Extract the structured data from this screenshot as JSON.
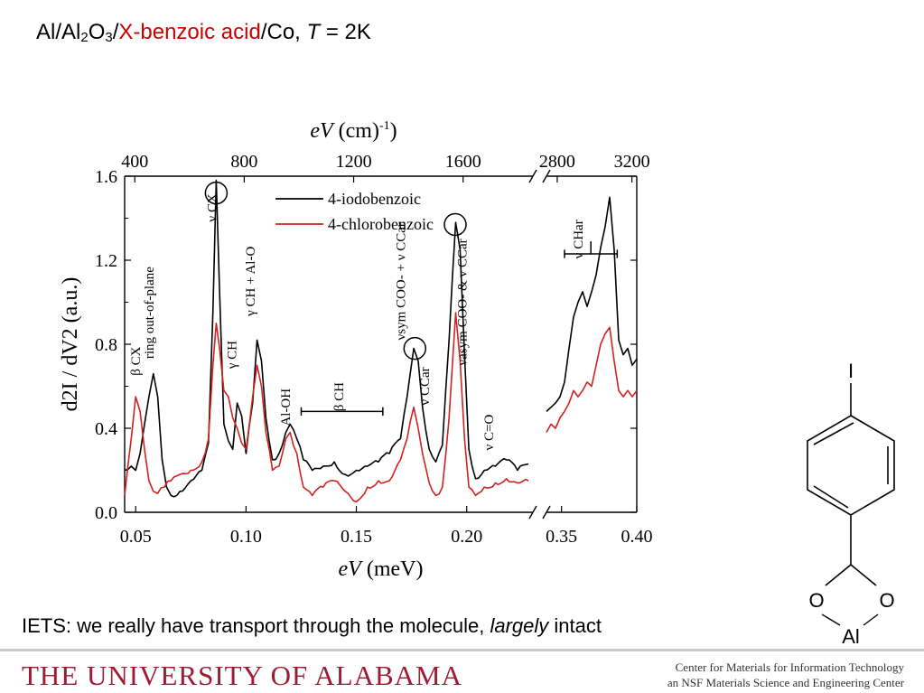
{
  "slide": {
    "title_parts": [
      "Al/Al",
      "2",
      "O",
      "3",
      "/",
      "X-benzoic acid",
      "/Co,  ",
      "T",
      " = 2K"
    ],
    "caption_parts": [
      "IETS: we really have transport through the molecule, ",
      "largely",
      " intact"
    ],
    "footer_left": "THE UNIVERSITY OF ALABAMA",
    "footer_right_line1": "Center for Materials for Information Technology",
    "footer_right_line2": "an NSF Materials Science and Engineering Center",
    "brand_color": "#9e1b32",
    "accent_red": "#cc0000"
  },
  "chart_data": {
    "type": "line",
    "xlabel": "eV (meV)",
    "top_xlabel": "eV (cm-1)",
    "ylabel": "d2I / dV2 (a.u.)",
    "ylim": [
      0.0,
      1.6
    ],
    "yticks": [
      "0.0",
      "0.4",
      "0.8",
      "1.2",
      "1.6"
    ],
    "axis_break": "between 0.23 and 0.34 meV (upper: between 1700 and 2700 cm-1)",
    "x_segments": [
      {
        "xlim": [
          0.045,
          0.23
        ],
        "ticks": [
          "0.05",
          "0.10",
          "0.15",
          "0.20"
        ],
        "top_ticks": [
          "400",
          "800",
          "1200",
          "1600"
        ]
      },
      {
        "xlim": [
          0.34,
          0.4
        ],
        "ticks": [
          "0.35",
          "0.40"
        ],
        "top_ticks": [
          "2800",
          "3200"
        ]
      }
    ],
    "series": [
      {
        "name": "4-iodobenzoic",
        "color": "#000000",
        "segment1": [
          [
            0.045,
            0.2
          ],
          [
            0.048,
            0.22
          ],
          [
            0.05,
            0.2
          ],
          [
            0.052,
            0.28
          ],
          [
            0.054,
            0.42
          ],
          [
            0.056,
            0.55
          ],
          [
            0.058,
            0.66
          ],
          [
            0.06,
            0.55
          ],
          [
            0.062,
            0.25
          ],
          [
            0.064,
            0.12
          ],
          [
            0.066,
            0.08
          ],
          [
            0.07,
            0.1
          ],
          [
            0.075,
            0.15
          ],
          [
            0.08,
            0.2
          ],
          [
            0.083,
            0.33
          ],
          [
            0.085,
            0.95
          ],
          [
            0.0865,
            1.58
          ],
          [
            0.088,
            1.05
          ],
          [
            0.09,
            0.42
          ],
          [
            0.092,
            0.34
          ],
          [
            0.094,
            0.3
          ],
          [
            0.096,
            0.52
          ],
          [
            0.098,
            0.46
          ],
          [
            0.1,
            0.28
          ],
          [
            0.103,
            0.52
          ],
          [
            0.105,
            0.82
          ],
          [
            0.107,
            0.72
          ],
          [
            0.109,
            0.45
          ],
          [
            0.112,
            0.25
          ],
          [
            0.115,
            0.28
          ],
          [
            0.118,
            0.38
          ],
          [
            0.12,
            0.42
          ],
          [
            0.123,
            0.35
          ],
          [
            0.126,
            0.25
          ],
          [
            0.13,
            0.2
          ],
          [
            0.135,
            0.22
          ],
          [
            0.14,
            0.24
          ],
          [
            0.145,
            0.18
          ],
          [
            0.15,
            0.2
          ],
          [
            0.155,
            0.22
          ],
          [
            0.16,
            0.24
          ],
          [
            0.165,
            0.28
          ],
          [
            0.17,
            0.35
          ],
          [
            0.173,
            0.55
          ],
          [
            0.176,
            0.78
          ],
          [
            0.178,
            0.72
          ],
          [
            0.18,
            0.5
          ],
          [
            0.183,
            0.3
          ],
          [
            0.186,
            0.24
          ],
          [
            0.189,
            0.32
          ],
          [
            0.192,
            0.82
          ],
          [
            0.195,
            1.38
          ],
          [
            0.197,
            1.25
          ],
          [
            0.199,
            0.75
          ],
          [
            0.201,
            0.3
          ],
          [
            0.204,
            0.16
          ],
          [
            0.208,
            0.2
          ],
          [
            0.213,
            0.22
          ],
          [
            0.218,
            0.25
          ],
          [
            0.223,
            0.2
          ],
          [
            0.228,
            0.23
          ]
        ],
        "segment2": [
          [
            0.34,
            0.48
          ],
          [
            0.343,
            0.5
          ],
          [
            0.346,
            0.52
          ],
          [
            0.349,
            0.55
          ],
          [
            0.352,
            0.62
          ],
          [
            0.355,
            0.78
          ],
          [
            0.358,
            0.93
          ],
          [
            0.361,
            1.0
          ],
          [
            0.364,
            1.05
          ],
          [
            0.367,
            0.98
          ],
          [
            0.37,
            1.05
          ],
          [
            0.373,
            1.13
          ],
          [
            0.376,
            1.26
          ],
          [
            0.379,
            1.36
          ],
          [
            0.382,
            1.5
          ],
          [
            0.385,
            1.25
          ],
          [
            0.388,
            0.82
          ],
          [
            0.391,
            0.75
          ],
          [
            0.394,
            0.78
          ],
          [
            0.397,
            0.7
          ],
          [
            0.4,
            0.73
          ]
        ]
      },
      {
        "name": "4-chlorobenzoic",
        "color": "#d42020",
        "segment1": [
          [
            0.045,
            0.08
          ],
          [
            0.048,
            0.35
          ],
          [
            0.05,
            0.55
          ],
          [
            0.052,
            0.48
          ],
          [
            0.054,
            0.3
          ],
          [
            0.056,
            0.15
          ],
          [
            0.058,
            0.1
          ],
          [
            0.06,
            0.09
          ],
          [
            0.063,
            0.12
          ],
          [
            0.066,
            0.15
          ],
          [
            0.07,
            0.18
          ],
          [
            0.075,
            0.2
          ],
          [
            0.08,
            0.24
          ],
          [
            0.083,
            0.35
          ],
          [
            0.085,
            0.7
          ],
          [
            0.0865,
            0.9
          ],
          [
            0.088,
            0.78
          ],
          [
            0.09,
            0.58
          ],
          [
            0.092,
            0.55
          ],
          [
            0.094,
            0.45
          ],
          [
            0.096,
            0.4
          ],
          [
            0.098,
            0.33
          ],
          [
            0.1,
            0.3
          ],
          [
            0.103,
            0.55
          ],
          [
            0.105,
            0.7
          ],
          [
            0.107,
            0.6
          ],
          [
            0.109,
            0.38
          ],
          [
            0.112,
            0.2
          ],
          [
            0.115,
            0.22
          ],
          [
            0.118,
            0.35
          ],
          [
            0.12,
            0.38
          ],
          [
            0.123,
            0.28
          ],
          [
            0.126,
            0.12
          ],
          [
            0.13,
            0.08
          ],
          [
            0.135,
            0.12
          ],
          [
            0.14,
            0.15
          ],
          [
            0.145,
            0.1
          ],
          [
            0.15,
            0.05
          ],
          [
            0.155,
            0.12
          ],
          [
            0.16,
            0.15
          ],
          [
            0.165,
            0.15
          ],
          [
            0.17,
            0.25
          ],
          [
            0.173,
            0.35
          ],
          [
            0.176,
            0.5
          ],
          [
            0.178,
            0.4
          ],
          [
            0.18,
            0.28
          ],
          [
            0.183,
            0.14
          ],
          [
            0.186,
            0.08
          ],
          [
            0.189,
            0.12
          ],
          [
            0.192,
            0.45
          ],
          [
            0.195,
            0.95
          ],
          [
            0.197,
            0.72
          ],
          [
            0.199,
            0.35
          ],
          [
            0.201,
            0.12
          ],
          [
            0.204,
            0.08
          ],
          [
            0.208,
            0.12
          ],
          [
            0.213,
            0.14
          ],
          [
            0.218,
            0.16
          ],
          [
            0.223,
            0.14
          ],
          [
            0.228,
            0.15
          ]
        ],
        "segment2": [
          [
            0.34,
            0.38
          ],
          [
            0.343,
            0.42
          ],
          [
            0.346,
            0.4
          ],
          [
            0.349,
            0.45
          ],
          [
            0.352,
            0.48
          ],
          [
            0.355,
            0.52
          ],
          [
            0.358,
            0.58
          ],
          [
            0.361,
            0.55
          ],
          [
            0.364,
            0.58
          ],
          [
            0.367,
            0.62
          ],
          [
            0.37,
            0.6
          ],
          [
            0.373,
            0.7
          ],
          [
            0.376,
            0.8
          ],
          [
            0.379,
            0.85
          ],
          [
            0.382,
            0.88
          ],
          [
            0.385,
            0.72
          ],
          [
            0.388,
            0.58
          ],
          [
            0.391,
            0.55
          ],
          [
            0.394,
            0.58
          ],
          [
            0.397,
            0.55
          ],
          [
            0.4,
            0.58
          ]
        ]
      }
    ],
    "annotations": [
      {
        "text": "β CX",
        "x": 0.052,
        "y": 0.72
      },
      {
        "text": "ring out-of-plane",
        "x": 0.058,
        "y": 0.95
      },
      {
        "text": "ν CX",
        "x": 0.0865,
        "y": 1.45
      },
      {
        "text": "γ CH",
        "x": 0.0955,
        "y": 0.75
      },
      {
        "text": "γ CH + Al-O",
        "x": 0.104,
        "y": 1.1
      },
      {
        "text": "Al-OH",
        "x": 0.12,
        "y": 0.5
      },
      {
        "text": "β CH",
        "x": 0.144,
        "y": 0.55
      },
      {
        "text": "νsym COO- + ν CCar",
        "x": 0.172,
        "y": 1.1
      },
      {
        "text": "ν CCar",
        "x": 0.183,
        "y": 0.6
      },
      {
        "text": "νasym COO- & ν CCar",
        "x": 0.2,
        "y": 1.0
      },
      {
        "text": "ν C=O",
        "x": 0.212,
        "y": 0.38
      },
      {
        "text": "ν CHar",
        "x": 0.364,
        "y": 1.3
      }
    ]
  },
  "molecule": {
    "top_atom": "I",
    "left_oxygen": "O",
    "right_oxygen": "O",
    "bottom_atom": "Al"
  }
}
